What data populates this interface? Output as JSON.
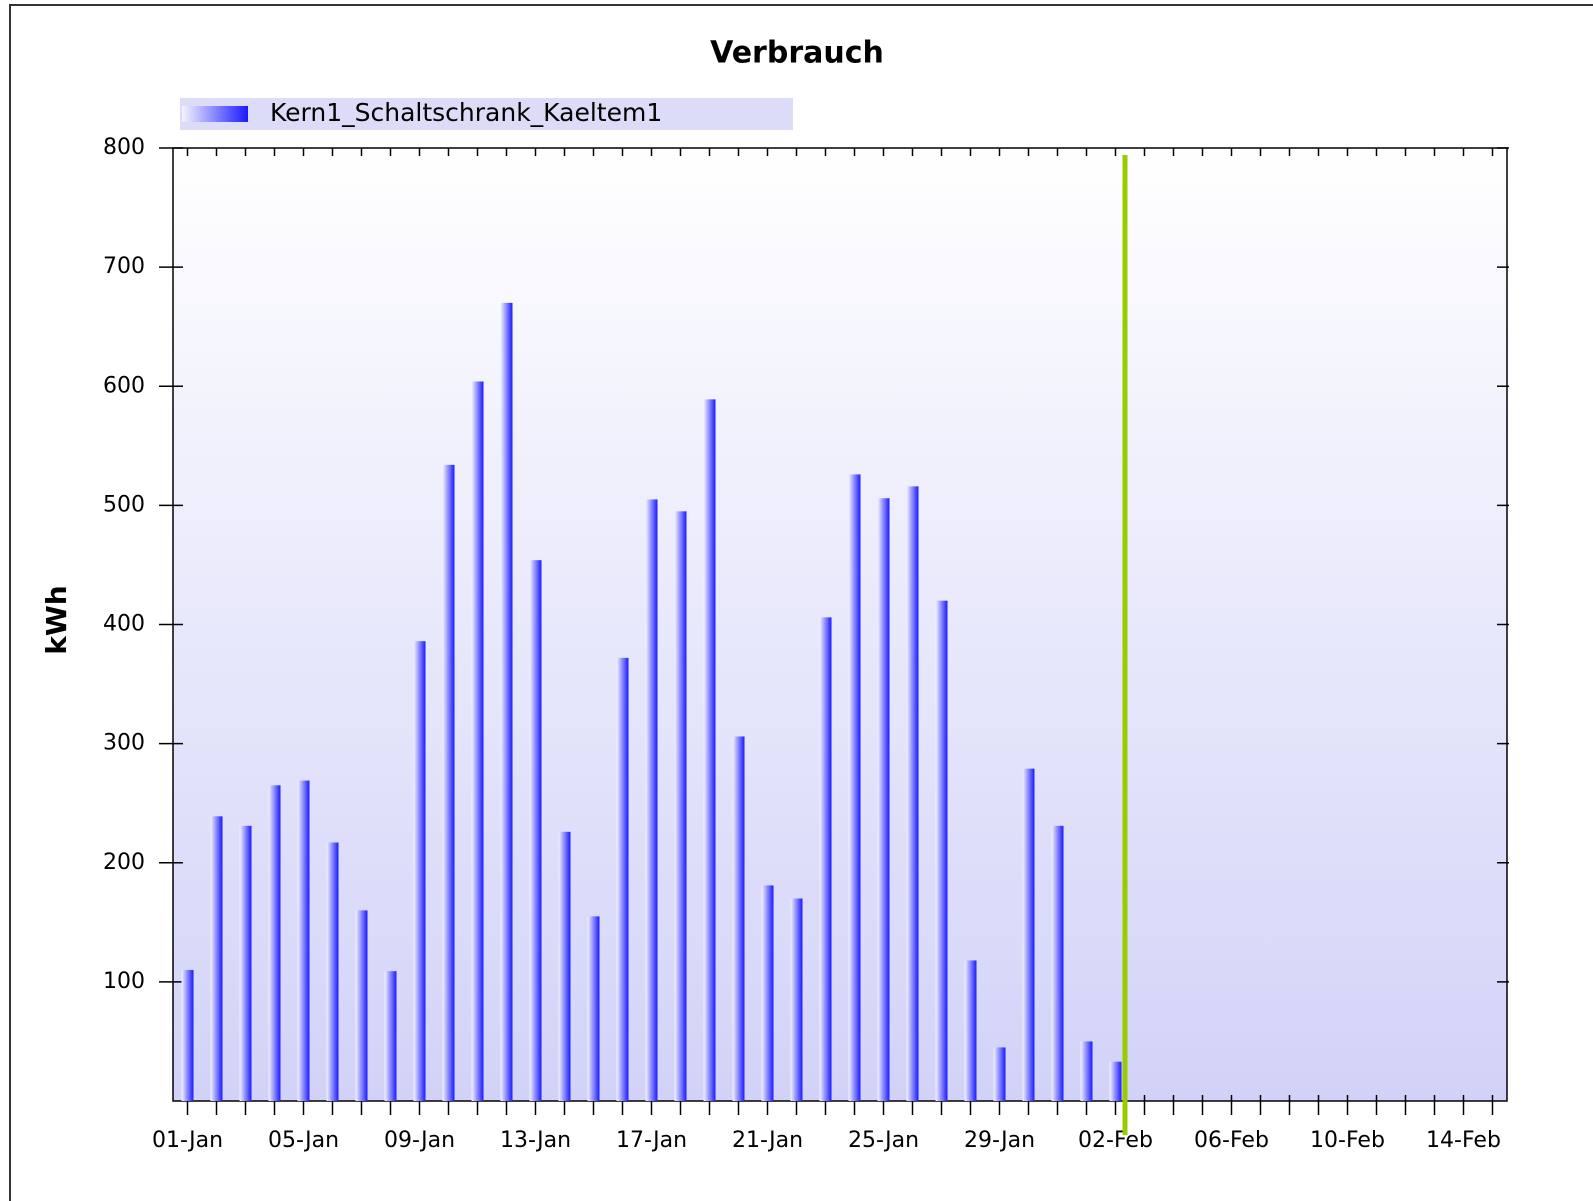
{
  "chart_data": {
    "type": "bar",
    "title": "Verbrauch",
    "y_label": "kWh",
    "series": [
      {
        "name": "Kern1_Schaltschrank_Kaeltem1",
        "color": "#1a1aff",
        "values": [
          110,
          239,
          231,
          265,
          269,
          217,
          160,
          109,
          386,
          534,
          604,
          670,
          454,
          226,
          155,
          372,
          505,
          495,
          589,
          306,
          181,
          170,
          406,
          526,
          506,
          516,
          420,
          118,
          45,
          279,
          231,
          50,
          33,
          null,
          null,
          null,
          null,
          null,
          null,
          null,
          null,
          null,
          null,
          null,
          null,
          null
        ]
      }
    ],
    "categories": [
      "01-Jan",
      null,
      null,
      null,
      "05-Jan",
      null,
      null,
      null,
      "09-Jan",
      null,
      null,
      null,
      "13-Jan",
      null,
      null,
      null,
      "17-Jan",
      null,
      null,
      null,
      "21-Jan",
      null,
      null,
      null,
      "25-Jan",
      null,
      null,
      null,
      "29-Jan",
      null,
      null,
      null,
      "02-Feb",
      null,
      null,
      null,
      "06-Feb",
      null,
      null,
      null,
      "10-Feb",
      null,
      null,
      null,
      "14-Feb",
      null
    ],
    "ylim": [
      0,
      800
    ],
    "yticks": [
      100,
      200,
      300,
      400,
      500,
      600,
      700,
      800
    ],
    "grid": false,
    "legend": "top-left"
  }
}
